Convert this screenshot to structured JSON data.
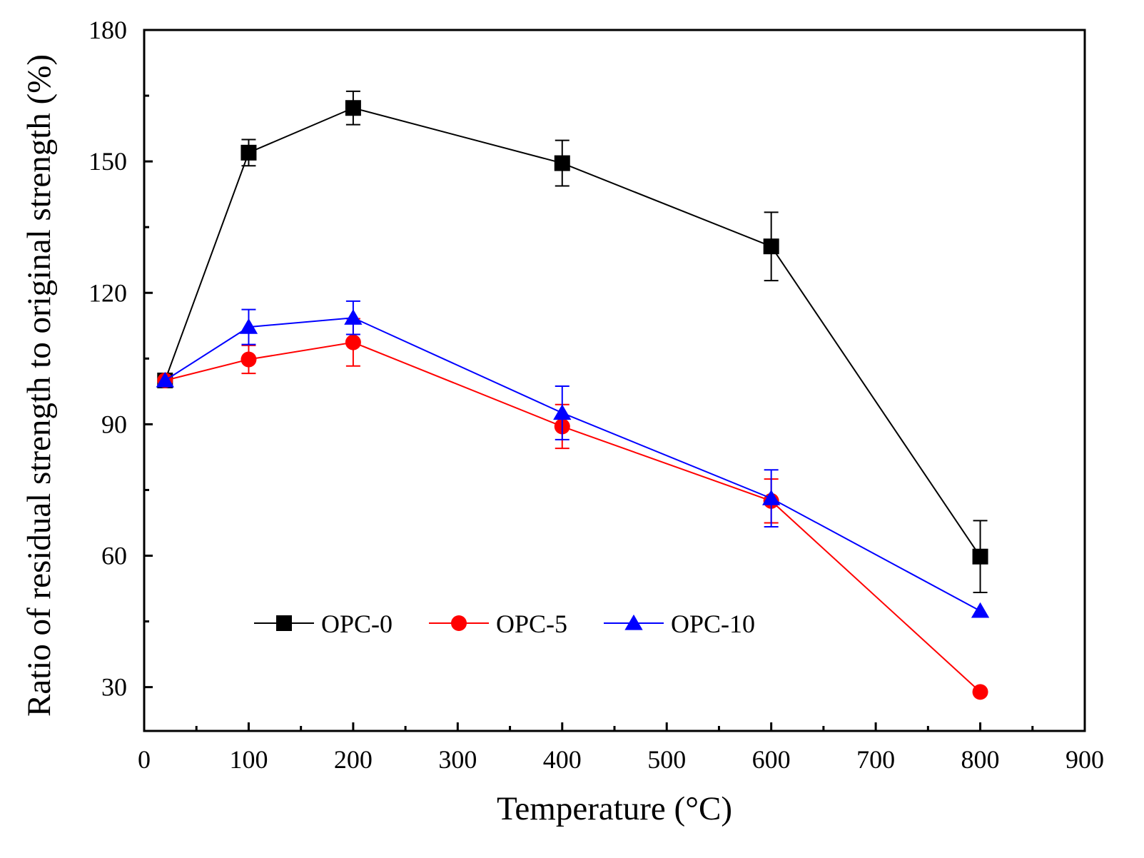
{
  "chart_data": {
    "type": "line",
    "title": "",
    "xlabel": "Temperature (°C)",
    "ylabel": "Ratio of residual strength to original strength (%)",
    "xlim": [
      0,
      900
    ],
    "ylim": [
      20,
      180
    ],
    "x_ticks": [
      "0",
      "100",
      "200",
      "300",
      "400",
      "500",
      "600",
      "700",
      "800",
      "900"
    ],
    "y_ticks": [
      "30",
      "60",
      "90",
      "120",
      "150",
      "180"
    ],
    "legend_position": "bottom-left",
    "grid": false,
    "x": [
      20,
      100,
      200,
      400,
      600,
      800
    ],
    "series": [
      {
        "name": "OPC-0",
        "color": "#000000",
        "marker": "square",
        "values": [
          100,
          152,
          162.2,
          149.6,
          130.6,
          59.8
        ],
        "errors": [
          0,
          3,
          3.8,
          5.2,
          7.8,
          8.2
        ]
      },
      {
        "name": "OPC-5",
        "color": "#ff0000",
        "marker": "circle",
        "values": [
          100,
          104.8,
          108.7,
          89.5,
          72.5,
          28.9
        ],
        "errors": [
          0,
          3.2,
          5.4,
          5,
          5,
          0
        ]
      },
      {
        "name": "OPC-10",
        "color": "#0000ff",
        "marker": "triangle",
        "values": [
          100,
          112.2,
          114.3,
          92.6,
          73.1,
          47.4
        ],
        "errors": [
          0,
          4,
          3.8,
          6.1,
          6.5,
          0
        ]
      }
    ]
  }
}
